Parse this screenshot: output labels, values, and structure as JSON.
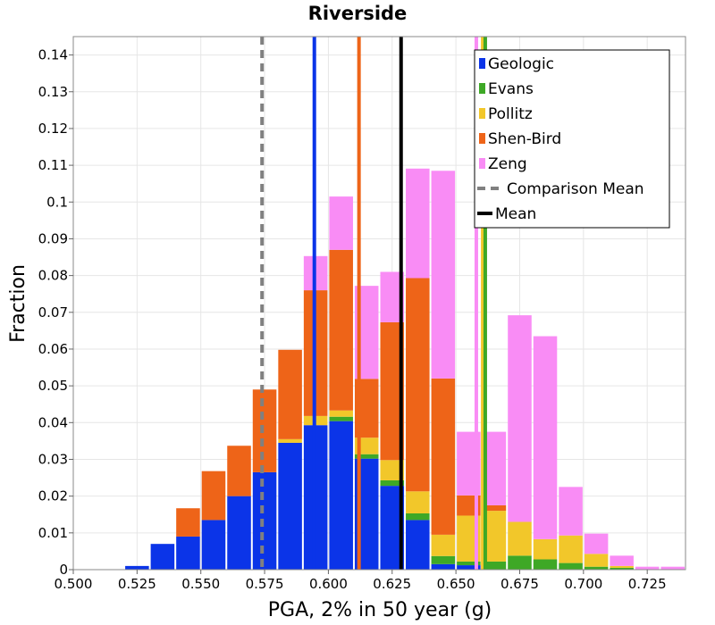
{
  "chart_data": {
    "type": "bar",
    "stacked": true,
    "title": "Riverside",
    "xlabel": "PGA, 2% in 50 year (g)",
    "ylabel": "Fraction",
    "xlim": [
      0.5,
      0.74
    ],
    "ylim": [
      0,
      0.145
    ],
    "xticks": [
      "0.500",
      "0.525",
      "0.550",
      "0.575",
      "0.600",
      "0.625",
      "0.650",
      "0.675",
      "0.700",
      "0.725"
    ],
    "yticks": [
      "0",
      "0.01",
      "0.02",
      "0.03",
      "0.04",
      "0.05",
      "0.06",
      "0.07",
      "0.08",
      "0.09",
      "0.1",
      "0.11",
      "0.12",
      "0.13",
      "0.14"
    ],
    "grid": true,
    "legend_position": "top-right",
    "bin_centers": [
      0.515,
      0.525,
      0.535,
      0.545,
      0.555,
      0.565,
      0.575,
      0.585,
      0.595,
      0.605,
      0.615,
      0.625,
      0.635,
      0.645,
      0.655,
      0.665,
      0.675,
      0.685,
      0.695,
      0.705,
      0.715,
      0.725,
      0.735
    ],
    "series": [
      {
        "name": "Geologic",
        "color": "#0b34e8",
        "values": [
          0,
          0.001,
          0.007,
          0.009,
          0.0135,
          0.02,
          0.0265,
          0.0345,
          0.0393,
          0.0404,
          0.0302,
          0.0228,
          0.0135,
          0.0015,
          0.0012,
          0,
          0,
          0,
          0,
          0,
          0,
          0,
          0
        ]
      },
      {
        "name": "Evans",
        "color": "#3ea826",
        "values": [
          0,
          0,
          0,
          0,
          0,
          0,
          0,
          0,
          0,
          0.0012,
          0.0012,
          0.0015,
          0.0018,
          0.0022,
          0.001,
          0.0022,
          0.0038,
          0.0028,
          0.0018,
          0.0008,
          0.0005,
          0,
          0
        ]
      },
      {
        "name": "Pollitz",
        "color": "#f2c72a",
        "values": [
          0,
          0,
          0,
          0,
          0,
          0,
          0,
          0.001,
          0.0025,
          0.0017,
          0.0045,
          0.0055,
          0.006,
          0.0058,
          0.0125,
          0.0138,
          0.0092,
          0.0055,
          0.0075,
          0.0035,
          0.0005,
          0,
          0
        ]
      },
      {
        "name": "Shen-Bird",
        "color": "#ee6418",
        "values": [
          0,
          0,
          0,
          0.0077,
          0.0133,
          0.0137,
          0.0225,
          0.0243,
          0.0342,
          0.0437,
          0.016,
          0.0375,
          0.058,
          0.0425,
          0.0055,
          0.0015,
          0,
          0,
          0,
          0,
          0,
          0,
          0
        ]
      },
      {
        "name": "Zeng",
        "color": "#f98cf5",
        "values": [
          0,
          0,
          0,
          0,
          0,
          0,
          0,
          0,
          0.0093,
          0.0145,
          0.0253,
          0.0137,
          0.0298,
          0.0565,
          0.0173,
          0.02,
          0.0562,
          0.0552,
          0.0132,
          0.0055,
          0.0028,
          0.0008,
          0.0008
        ]
      }
    ],
    "vertical_lines": [
      {
        "name": "Geologic",
        "x": 0.5945,
        "color": "#0b34e8",
        "style": "solid"
      },
      {
        "name": "Shen-Bird",
        "x": 0.612,
        "color": "#ee6418",
        "style": "solid"
      },
      {
        "name": "Zeng",
        "x": 0.658,
        "color": "#f98cf5",
        "style": "solid"
      },
      {
        "name": "Pollitz",
        "x": 0.6605,
        "color": "#f2c72a",
        "style": "solid"
      },
      {
        "name": "Evans",
        "x": 0.6615,
        "color": "#3ea826",
        "style": "solid"
      },
      {
        "name": "Comparison Mean",
        "x": 0.574,
        "color": "#808080",
        "style": "dashed"
      },
      {
        "name": "Mean",
        "x": 0.6285,
        "color": "#000000",
        "style": "solid"
      }
    ],
    "legend": [
      {
        "label": "Geologic",
        "color": "#0b34e8",
        "kind": "patch"
      },
      {
        "label": "Evans",
        "color": "#3ea826",
        "kind": "patch"
      },
      {
        "label": "Pollitz",
        "color": "#f2c72a",
        "kind": "patch"
      },
      {
        "label": "Shen-Bird",
        "color": "#ee6418",
        "kind": "patch"
      },
      {
        "label": "Zeng",
        "color": "#f98cf5",
        "kind": "patch"
      },
      {
        "label": "Comparison Mean",
        "color": "#808080",
        "kind": "dashed"
      },
      {
        "label": "Mean",
        "color": "#000000",
        "kind": "line"
      }
    ]
  }
}
